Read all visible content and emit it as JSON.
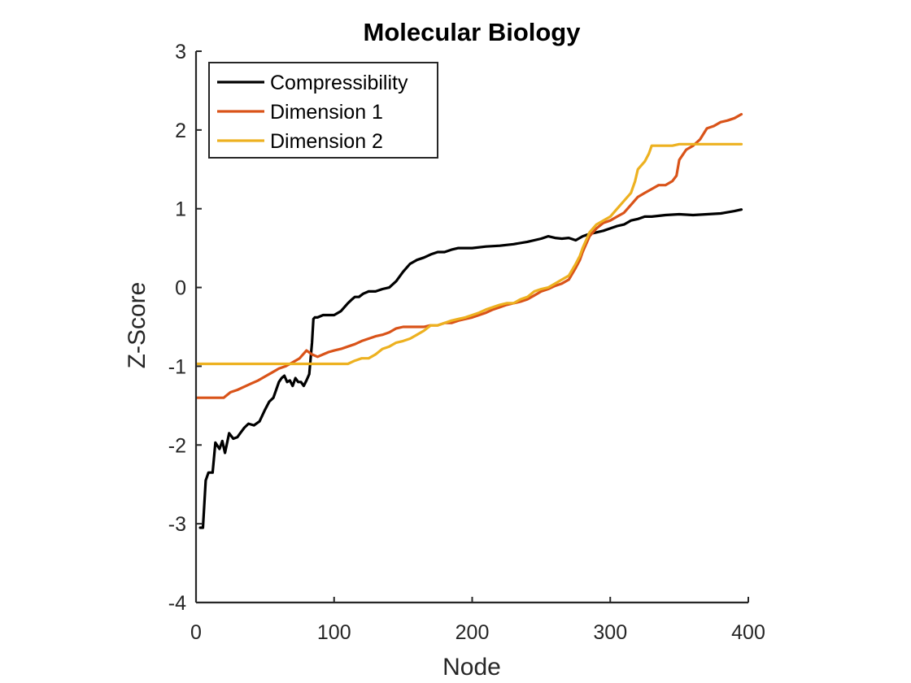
{
  "chart_data": {
    "type": "line",
    "title": "Molecular Biology",
    "xlabel": "Node",
    "ylabel": "Z-Score",
    "xlim": [
      0,
      400
    ],
    "ylim": [
      -4,
      3
    ],
    "xticks": [
      "0",
      "100",
      "200",
      "300",
      "400"
    ],
    "yticks": [
      "-4",
      "-3",
      "-2",
      "-1",
      "0",
      "1",
      "2",
      "3"
    ],
    "grid": false,
    "legend_position": "top-left",
    "series": [
      {
        "name": "Compressibility",
        "color": "#000000",
        "x": [
          3,
          5,
          7,
          9,
          12,
          14,
          17,
          19,
          21,
          24,
          27,
          30,
          32,
          35,
          38,
          42,
          46,
          50,
          53,
          56,
          58,
          60,
          62,
          64,
          66,
          68,
          70,
          72,
          74,
          76,
          78,
          80,
          82,
          84,
          85,
          86,
          88,
          92,
          96,
          100,
          105,
          110,
          113,
          115,
          118,
          121,
          125,
          130,
          135,
          140,
          145,
          150,
          155,
          160,
          165,
          170,
          175,
          180,
          185,
          190,
          195,
          200,
          210,
          220,
          230,
          240,
          250,
          255,
          260,
          265,
          270,
          275,
          280,
          285,
          290,
          295,
          300,
          305,
          310,
          315,
          320,
          325,
          330,
          340,
          350,
          360,
          370,
          380,
          390,
          395
        ],
        "y": [
          -3.05,
          -3.05,
          -2.45,
          -2.35,
          -2.35,
          -1.97,
          -2.05,
          -1.95,
          -2.1,
          -1.85,
          -1.92,
          -1.9,
          -1.85,
          -1.78,
          -1.73,
          -1.75,
          -1.7,
          -1.55,
          -1.45,
          -1.4,
          -1.3,
          -1.2,
          -1.15,
          -1.12,
          -1.2,
          -1.18,
          -1.25,
          -1.15,
          -1.2,
          -1.2,
          -1.25,
          -1.18,
          -1.1,
          -0.7,
          -0.4,
          -0.38,
          -0.38,
          -0.35,
          -0.35,
          -0.35,
          -0.3,
          -0.2,
          -0.15,
          -0.12,
          -0.12,
          -0.08,
          -0.05,
          -0.05,
          -0.02,
          0.0,
          0.08,
          0.2,
          0.3,
          0.35,
          0.38,
          0.42,
          0.45,
          0.45,
          0.48,
          0.5,
          0.5,
          0.5,
          0.52,
          0.53,
          0.55,
          0.58,
          0.62,
          0.65,
          0.63,
          0.62,
          0.63,
          0.6,
          0.65,
          0.68,
          0.7,
          0.72,
          0.75,
          0.78,
          0.8,
          0.85,
          0.87,
          0.9,
          0.9,
          0.92,
          0.93,
          0.92,
          0.93,
          0.94,
          0.97,
          0.99
        ]
      },
      {
        "name": "Dimension 1",
        "color": "#D95319",
        "x": [
          1,
          20,
          25,
          30,
          35,
          40,
          45,
          50,
          55,
          60,
          65,
          70,
          75,
          80,
          84,
          88,
          92,
          96,
          100,
          105,
          110,
          115,
          120,
          125,
          130,
          135,
          140,
          145,
          150,
          155,
          160,
          165,
          170,
          175,
          180,
          185,
          190,
          195,
          200,
          205,
          210,
          215,
          220,
          225,
          230,
          235,
          240,
          245,
          250,
          255,
          260,
          265,
          270,
          275,
          278,
          280,
          285,
          290,
          295,
          300,
          305,
          310,
          315,
          320,
          325,
          330,
          335,
          340,
          345,
          348,
          350,
          355,
          360,
          365,
          370,
          375,
          380,
          385,
          390,
          395
        ],
        "y": [
          -1.4,
          -1.4,
          -1.33,
          -1.3,
          -1.26,
          -1.22,
          -1.18,
          -1.13,
          -1.08,
          -1.03,
          -1.0,
          -0.95,
          -0.9,
          -0.8,
          -0.85,
          -0.88,
          -0.85,
          -0.82,
          -0.8,
          -0.78,
          -0.75,
          -0.72,
          -0.68,
          -0.65,
          -0.62,
          -0.6,
          -0.57,
          -0.52,
          -0.5,
          -0.5,
          -0.5,
          -0.5,
          -0.48,
          -0.48,
          -0.45,
          -0.45,
          -0.42,
          -0.4,
          -0.38,
          -0.35,
          -0.32,
          -0.28,
          -0.25,
          -0.22,
          -0.2,
          -0.18,
          -0.15,
          -0.1,
          -0.05,
          -0.02,
          0.02,
          0.05,
          0.1,
          0.25,
          0.35,
          0.45,
          0.65,
          0.75,
          0.82,
          0.85,
          0.9,
          0.95,
          1.05,
          1.15,
          1.2,
          1.25,
          1.3,
          1.3,
          1.35,
          1.42,
          1.62,
          1.75,
          1.8,
          1.88,
          2.02,
          2.05,
          2.1,
          2.12,
          2.15,
          2.2
        ]
      },
      {
        "name": "Dimension 2",
        "color": "#EDB120",
        "x": [
          1,
          110,
          115,
          120,
          125,
          130,
          135,
          140,
          145,
          150,
          155,
          160,
          165,
          170,
          175,
          180,
          185,
          190,
          195,
          200,
          205,
          210,
          215,
          220,
          225,
          230,
          235,
          240,
          245,
          250,
          255,
          260,
          265,
          270,
          275,
          278,
          280,
          285,
          290,
          295,
          300,
          305,
          310,
          315,
          318,
          320,
          325,
          328,
          330,
          335,
          340,
          345,
          350,
          355,
          360,
          395
        ],
        "y": [
          -0.97,
          -0.97,
          -0.93,
          -0.9,
          -0.9,
          -0.85,
          -0.78,
          -0.75,
          -0.7,
          -0.68,
          -0.65,
          -0.6,
          -0.55,
          -0.48,
          -0.48,
          -0.45,
          -0.42,
          -0.4,
          -0.38,
          -0.35,
          -0.32,
          -0.28,
          -0.25,
          -0.22,
          -0.2,
          -0.2,
          -0.15,
          -0.12,
          -0.05,
          -0.02,
          0.0,
          0.05,
          0.1,
          0.15,
          0.3,
          0.4,
          0.5,
          0.7,
          0.8,
          0.85,
          0.9,
          1.0,
          1.1,
          1.2,
          1.35,
          1.5,
          1.6,
          1.7,
          1.8,
          1.8,
          1.8,
          1.8,
          1.82,
          1.82,
          1.82,
          1.82
        ]
      }
    ]
  }
}
